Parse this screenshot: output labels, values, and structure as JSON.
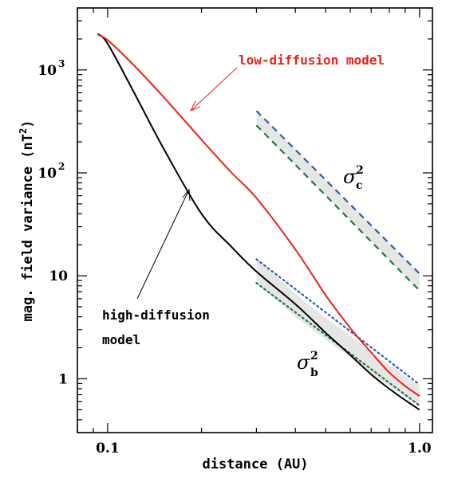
{
  "chart_data": {
    "type": "line",
    "title": "",
    "xlabel": "distance (AU)",
    "ylabel_prefix": "mag. field variance (nT",
    "ylabel_exp": "2",
    "ylabel_suffix": ")",
    "x_scale": "log",
    "y_scale": "log",
    "xlim": [
      0.08,
      1.1
    ],
    "ylim": [
      0.3,
      4000
    ],
    "x_ticks": [
      {
        "value": 0.1,
        "label": "0.1"
      },
      {
        "value": 1.0,
        "label": "1.0"
      }
    ],
    "y_ticks": [
      {
        "value": 1,
        "label": "1",
        "base": "",
        "exp": ""
      },
      {
        "value": 10,
        "label": "10",
        "base": "",
        "exp": ""
      },
      {
        "value": 100,
        "label": "",
        "base": "10",
        "exp": "2"
      },
      {
        "value": 1000,
        "label": "",
        "base": "10",
        "exp": "3"
      }
    ],
    "series": [
      {
        "name": "low-diffusion model",
        "color": "#e8231a",
        "style": "solid",
        "x": [
          0.093,
          0.1,
          0.12,
          0.15,
          0.2,
          0.25,
          0.3,
          0.4,
          0.5,
          0.6,
          0.7,
          0.8,
          0.9,
          1.0
        ],
        "y": [
          2200,
          1950,
          1150,
          560,
          210,
          100,
          57,
          18,
          6.5,
          3.1,
          1.8,
          1.15,
          0.85,
          0.68
        ]
      },
      {
        "name": "high-diffusion model",
        "color": "#000000",
        "style": "solid",
        "x": [
          0.093,
          0.1,
          0.12,
          0.15,
          0.2,
          0.25,
          0.3,
          0.4,
          0.5,
          0.6,
          0.7,
          0.8,
          0.9,
          1.0
        ],
        "y": [
          2250,
          1800,
          650,
          180,
          40,
          19,
          11,
          5.3,
          2.8,
          1.7,
          1.1,
          0.8,
          0.62,
          0.5
        ]
      },
      {
        "name": "",
        "color": "#2b5bb5",
        "style": "dashed",
        "x": [
          0.3,
          1.0
        ],
        "y": [
          400,
          10.5
        ]
      },
      {
        "name": "",
        "color": "#1f7a3a",
        "style": "dashed",
        "x": [
          0.3,
          1.0
        ],
        "y": [
          290,
          7.2
        ]
      },
      {
        "name": "",
        "color": "#2b5bb5",
        "style": "dotted",
        "x": [
          0.3,
          1.0
        ],
        "y": [
          14.5,
          0.88
        ]
      },
      {
        "name": "",
        "color": "#1f7a3a",
        "style": "dotted",
        "x": [
          0.3,
          1.0
        ],
        "y": [
          8.5,
          0.55
        ]
      }
    ],
    "shaded_bands": [
      {
        "x": [
          0.3,
          1.0
        ],
        "upper": [
          400,
          10.5
        ],
        "lower": [
          290,
          7.2
        ],
        "color": "#e6e6e6"
      },
      {
        "x": [
          0.3,
          0.4,
          0.5,
          0.6,
          0.7,
          0.8,
          0.9,
          1.0
        ],
        "upper": [
          14.5,
          6.7,
          3.9,
          2.6,
          1.8,
          1.35,
          1.05,
          0.88
        ],
        "lower": [
          8.5,
          4.0,
          2.4,
          1.6,
          1.1,
          0.85,
          0.67,
          0.55
        ],
        "color": "#e6e6e6"
      }
    ],
    "annotations": [
      {
        "id": "low",
        "text": "low-diffusion model",
        "color": "#e8231a"
      },
      {
        "id": "high_line1",
        "text": "high-diffusion",
        "color": "#000000"
      },
      {
        "id": "high_line2",
        "text": "model",
        "color": "#000000"
      }
    ],
    "symbols": {
      "sigma_c_base": "σ",
      "sigma_c_sub": "c",
      "sigma_c_sup": "2",
      "sigma_b_base": "σ",
      "sigma_b_sub": "b",
      "sigma_b_sup": "2"
    },
    "grid": false,
    "legend": "none"
  }
}
